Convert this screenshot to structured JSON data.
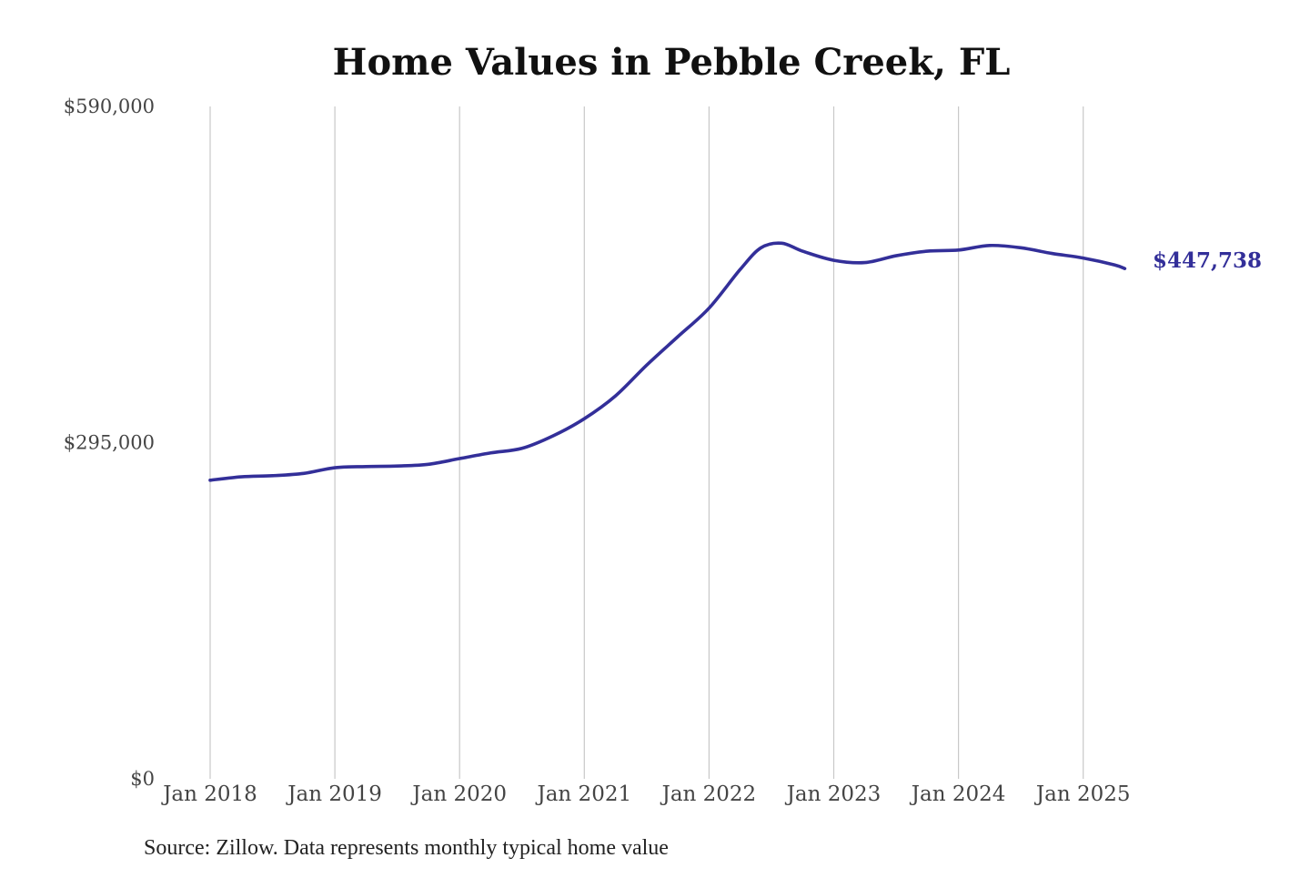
{
  "chart_data": {
    "type": "line",
    "title": "Home Values in Pebble Creek, FL",
    "xlabel": "",
    "ylabel": "",
    "ylim": [
      0,
      590000
    ],
    "yticks": [
      {
        "value": 0,
        "label": "$0"
      },
      {
        "value": 295000,
        "label": "$295,000"
      },
      {
        "value": 590000,
        "label": "$590,000"
      }
    ],
    "xticks": [
      {
        "value": "2018-01",
        "label": "Jan 2018"
      },
      {
        "value": "2019-01",
        "label": "Jan 2019"
      },
      {
        "value": "2020-01",
        "label": "Jan 2020"
      },
      {
        "value": "2021-01",
        "label": "Jan 2021"
      },
      {
        "value": "2022-01",
        "label": "Jan 2022"
      },
      {
        "value": "2023-01",
        "label": "Jan 2023"
      },
      {
        "value": "2024-01",
        "label": "Jan 2024"
      },
      {
        "value": "2025-01",
        "label": "Jan 2025"
      }
    ],
    "grid": {
      "vertical": true,
      "horizontal": false
    },
    "line_color": "#332f99",
    "grid_color": "#c8c8c8",
    "end_label": "$447,738",
    "source": "Source: Zillow. Data represents monthly typical home value",
    "series": [
      {
        "points": [
          {
            "x": "2018-01",
            "y": 262000
          },
          {
            "x": "2018-04",
            "y": 265000
          },
          {
            "x": "2018-07",
            "y": 266000
          },
          {
            "x": "2018-10",
            "y": 268000
          },
          {
            "x": "2019-01",
            "y": 273000
          },
          {
            "x": "2019-04",
            "y": 274000
          },
          {
            "x": "2019-07",
            "y": 274500
          },
          {
            "x": "2019-10",
            "y": 276000
          },
          {
            "x": "2020-01",
            "y": 281000
          },
          {
            "x": "2020-04",
            "y": 286000
          },
          {
            "x": "2020-07",
            "y": 290000
          },
          {
            "x": "2020-10",
            "y": 301000
          },
          {
            "x": "2021-01",
            "y": 316000
          },
          {
            "x": "2021-04",
            "y": 336000
          },
          {
            "x": "2021-07",
            "y": 363000
          },
          {
            "x": "2021-10",
            "y": 388000
          },
          {
            "x": "2022-01",
            "y": 413000
          },
          {
            "x": "2022-04",
            "y": 447000
          },
          {
            "x": "2022-06",
            "y": 466000
          },
          {
            "x": "2022-08",
            "y": 470000
          },
          {
            "x": "2022-10",
            "y": 463000
          },
          {
            "x": "2023-01",
            "y": 455000
          },
          {
            "x": "2023-04",
            "y": 453000
          },
          {
            "x": "2023-07",
            "y": 459000
          },
          {
            "x": "2023-10",
            "y": 463000
          },
          {
            "x": "2024-01",
            "y": 464000
          },
          {
            "x": "2024-04",
            "y": 468000
          },
          {
            "x": "2024-07",
            "y": 466000
          },
          {
            "x": "2024-10",
            "y": 461000
          },
          {
            "x": "2025-01",
            "y": 457000
          },
          {
            "x": "2025-04",
            "y": 451000
          },
          {
            "x": "2025-05",
            "y": 447738
          }
        ]
      }
    ]
  }
}
